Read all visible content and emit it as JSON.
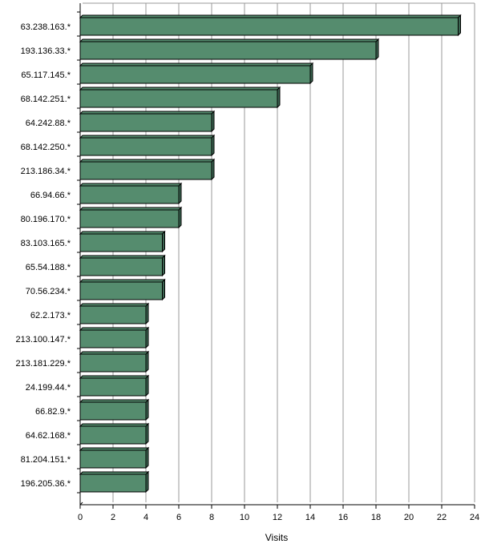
{
  "chart_data": {
    "type": "bar",
    "orientation": "horizontal",
    "categories": [
      "63.238.163.*",
      "193.136.33.*",
      "65.117.145.*",
      "68.142.251.*",
      "64.242.88.*",
      "68.142.250.*",
      "213.186.34.*",
      "66.94.66.*",
      "80.196.170.*",
      "83.103.165.*",
      "65.54.188.*",
      "70.56.234.*",
      "62.2.173.*",
      "213.100.147.*",
      "213.181.229.*",
      "24.199.44.*",
      "66.82.9.*",
      "64.62.168.*",
      "81.204.151.*",
      "196.205.36.*"
    ],
    "values": [
      23,
      18,
      14,
      12,
      8,
      8,
      8,
      6,
      6,
      5,
      5,
      5,
      4,
      4,
      4,
      4,
      4,
      4,
      4,
      4
    ],
    "xlabel": "Visits",
    "ylabel": "",
    "xlim": [
      0,
      24
    ],
    "xticks": [
      "0",
      "2",
      "4",
      "6",
      "8",
      "10",
      "12",
      "14",
      "16",
      "18",
      "20",
      "22",
      "24"
    ],
    "grid": true,
    "legend": "none",
    "bar_color": "#558c6e",
    "bar_side_color": "#3a6350",
    "bar_outline_color": "#000000",
    "grid_color": "#999999"
  }
}
